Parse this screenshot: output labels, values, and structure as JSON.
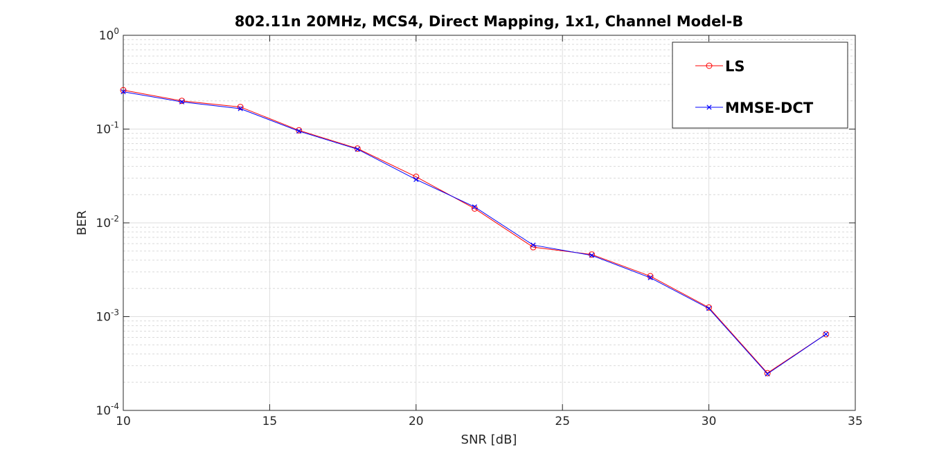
{
  "chart_data": {
    "type": "line",
    "title": "802.11n 20MHz, MCS4, Direct Mapping, 1x1, Channel Model-B",
    "xlabel": "SNR [dB]",
    "ylabel": "BER",
    "xlim": [
      10,
      35
    ],
    "ylim": [
      0.0001,
      1
    ],
    "yscale": "log",
    "grid": true,
    "minor_grid": true,
    "legend_position": "top-right",
    "x_ticks": [
      {
        "value": 10,
        "label": "10"
      },
      {
        "value": 15,
        "label": "15"
      },
      {
        "value": 20,
        "label": "20"
      },
      {
        "value": 25,
        "label": "25"
      },
      {
        "value": 30,
        "label": "30"
      },
      {
        "value": 35,
        "label": "35"
      }
    ],
    "y_ticks": [
      {
        "value": 1,
        "base": "10",
        "exp": "0"
      },
      {
        "value": 0.1,
        "base": "10",
        "exp": "-1"
      },
      {
        "value": 0.01,
        "base": "10",
        "exp": "-2"
      },
      {
        "value": 0.001,
        "base": "10",
        "exp": "-3"
      },
      {
        "value": 0.0001,
        "base": "10",
        "exp": "-4"
      }
    ],
    "x": [
      10,
      12,
      14,
      16,
      18,
      20,
      22,
      24,
      26,
      28,
      30,
      32,
      34
    ],
    "series": [
      {
        "name": "LS",
        "color": "#ff0000",
        "marker": "circle",
        "values": [
          0.26,
          0.2,
          0.172,
          0.097,
          0.062,
          0.031,
          0.0142,
          0.0055,
          0.0046,
          0.0027,
          0.00125,
          0.00025,
          0.00065
        ]
      },
      {
        "name": "MMSE-DCT",
        "color": "#0000ff",
        "marker": "x",
        "values": [
          0.25,
          0.195,
          0.165,
          0.095,
          0.061,
          0.029,
          0.0148,
          0.0058,
          0.0045,
          0.0026,
          0.00122,
          0.000245,
          0.00065
        ]
      }
    ]
  }
}
